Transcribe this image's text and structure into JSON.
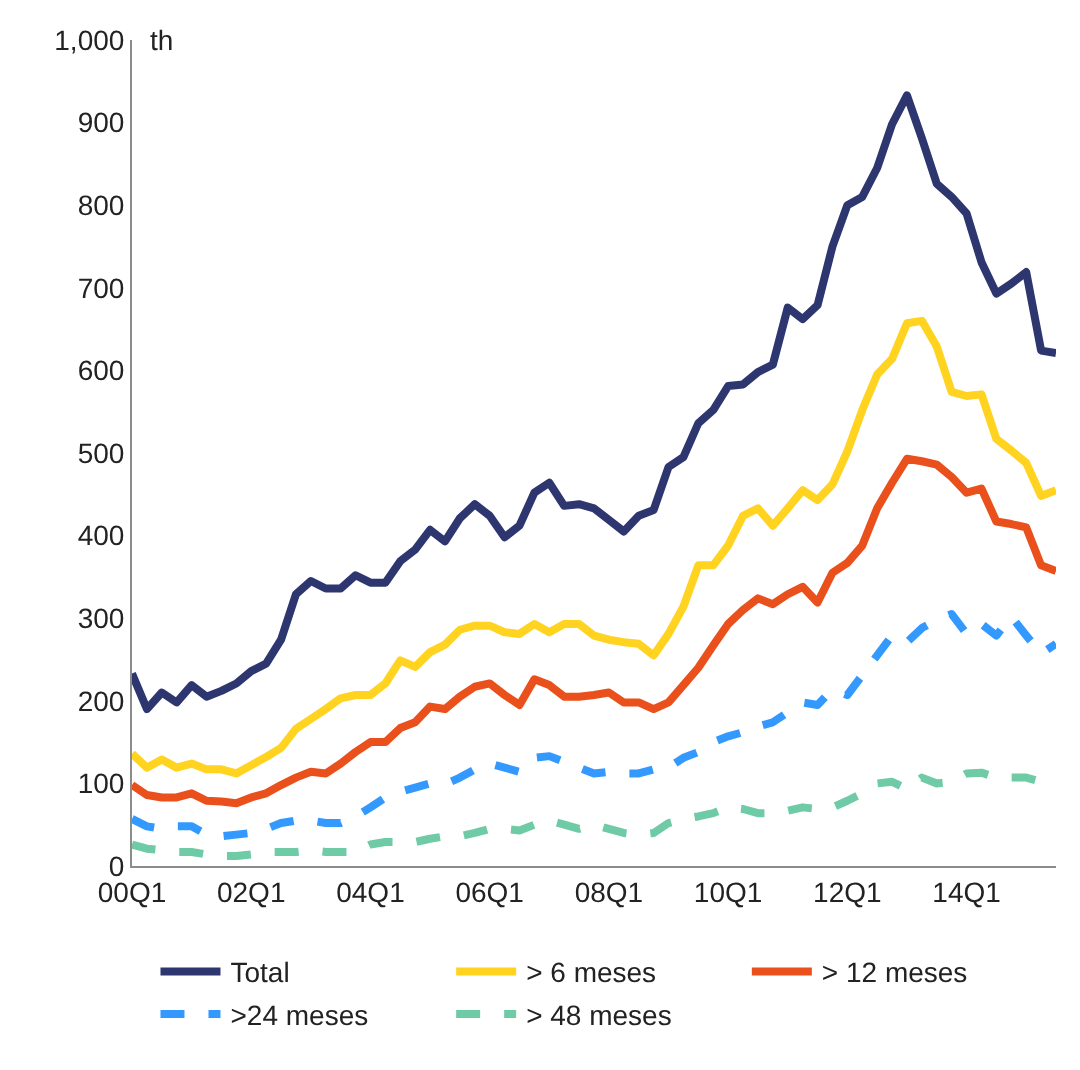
{
  "chart_data": {
    "type": "line",
    "ylabel": "th",
    "categories": [
      "00Q1",
      null,
      null,
      null,
      null,
      null,
      null,
      null,
      "02Q1",
      null,
      null,
      null,
      null,
      null,
      null,
      null,
      "04Q1",
      null,
      null,
      null,
      null,
      null,
      null,
      null,
      "06Q1",
      null,
      null,
      null,
      null,
      null,
      null,
      null,
      "08Q1",
      null,
      null,
      null,
      null,
      null,
      null,
      null,
      "10Q1",
      null,
      null,
      null,
      null,
      null,
      null,
      null,
      "12Q1",
      null,
      null,
      null,
      null,
      null,
      null,
      null,
      "14Q1",
      null,
      null,
      null,
      null,
      null,
      null
    ],
    "ylim": [
      0,
      1000
    ],
    "yticks": [
      0,
      100,
      200,
      300,
      400,
      500,
      600,
      700,
      800,
      900,
      {
        "value": 1000,
        "label": "1,000"
      }
    ],
    "legend": "bottom",
    "marker": "none",
    "series": [
      {
        "name": "Total",
        "color": "#2e3670",
        "line_style": "solid",
        "values": [
          233,
          190,
          210,
          198,
          219,
          205,
          212,
          221,
          236,
          245,
          274,
          329,
          345,
          336,
          336,
          352,
          343,
          343,
          369,
          383,
          407,
          393,
          421,
          438,
          424,
          398,
          412,
          452,
          464,
          436,
          438,
          433,
          419,
          405,
          424,
          431,
          483,
          495,
          536,
          552,
          581,
          583,
          598,
          607,
          676,
          662,
          679,
          750,
          800,
          810,
          845,
          898,
          933,
          881,
          826,
          810,
          790,
          731,
          693,
          705,
          719,
          624,
          621
        ]
      },
      {
        "name": "> 6 meses",
        "color": "#ffd320",
        "line_style": "solid",
        "values": [
          136,
          119,
          129,
          119,
          124,
          117,
          117,
          112,
          122,
          132,
          143,
          166,
          178,
          190,
          203,
          207,
          207,
          221,
          249,
          241,
          259,
          268,
          286,
          291,
          291,
          283,
          281,
          293,
          283,
          293,
          293,
          279,
          274,
          271,
          269,
          255,
          281,
          314,
          364,
          364,
          388,
          424,
          433,
          412,
          433,
          455,
          443,
          462,
          502,
          552,
          595,
          614,
          657,
          660,
          629,
          574,
          569,
          571,
          517,
          503,
          488,
          448,
          455
        ]
      },
      {
        "name": "> 12 meses",
        "color": "#e9501b",
        "line_style": "solid",
        "values": [
          98,
          86,
          83,
          83,
          88,
          79,
          78,
          76,
          83,
          88,
          98,
          107,
          114,
          112,
          124,
          138,
          150,
          150,
          167,
          174,
          193,
          190,
          205,
          217,
          221,
          207,
          195,
          226,
          219,
          205,
          205,
          207,
          210,
          198,
          198,
          190,
          198,
          219,
          240,
          267,
          293,
          310,
          324,
          317,
          329,
          338,
          319,
          355,
          367,
          388,
          433,
          464,
          493,
          490,
          486,
          471,
          452,
          457,
          417,
          414,
          410,
          364,
          357
        ]
      },
      {
        "name": ">24 meses",
        "color": "#3399ff",
        "line_style": "dashed",
        "values": [
          57,
          48,
          45,
          48,
          48,
          38,
          36,
          38,
          40,
          45,
          52,
          55,
          55,
          52,
          52,
          60,
          71,
          83,
          90,
          95,
          100,
          99,
          107,
          117,
          124,
          119,
          114,
          131,
          133,
          126,
          119,
          112,
          114,
          112,
          112,
          117,
          119,
          131,
          138,
          150,
          157,
          162,
          169,
          174,
          186,
          198,
          195,
          214,
          207,
          231,
          255,
          279,
          271,
          288,
          298,
          305,
          281,
          293,
          279,
          302,
          279,
          257,
          269
        ]
      },
      {
        "name": "> 48 meses",
        "color": "#6fcaa6",
        "line_style": "dashed",
        "values": [
          26,
          21,
          19,
          17,
          17,
          14,
          12,
          12,
          14,
          17,
          17,
          17,
          19,
          17,
          17,
          17,
          26,
          29,
          29,
          29,
          33,
          36,
          36,
          40,
          45,
          45,
          43,
          50,
          55,
          50,
          45,
          50,
          45,
          40,
          38,
          40,
          52,
          57,
          60,
          64,
          71,
          69,
          64,
          64,
          67,
          71,
          69,
          71,
          79,
          88,
          100,
          102,
          93,
          107,
          100,
          102,
          112,
          113,
          107,
          107,
          107,
          102,
          102
        ]
      }
    ]
  }
}
